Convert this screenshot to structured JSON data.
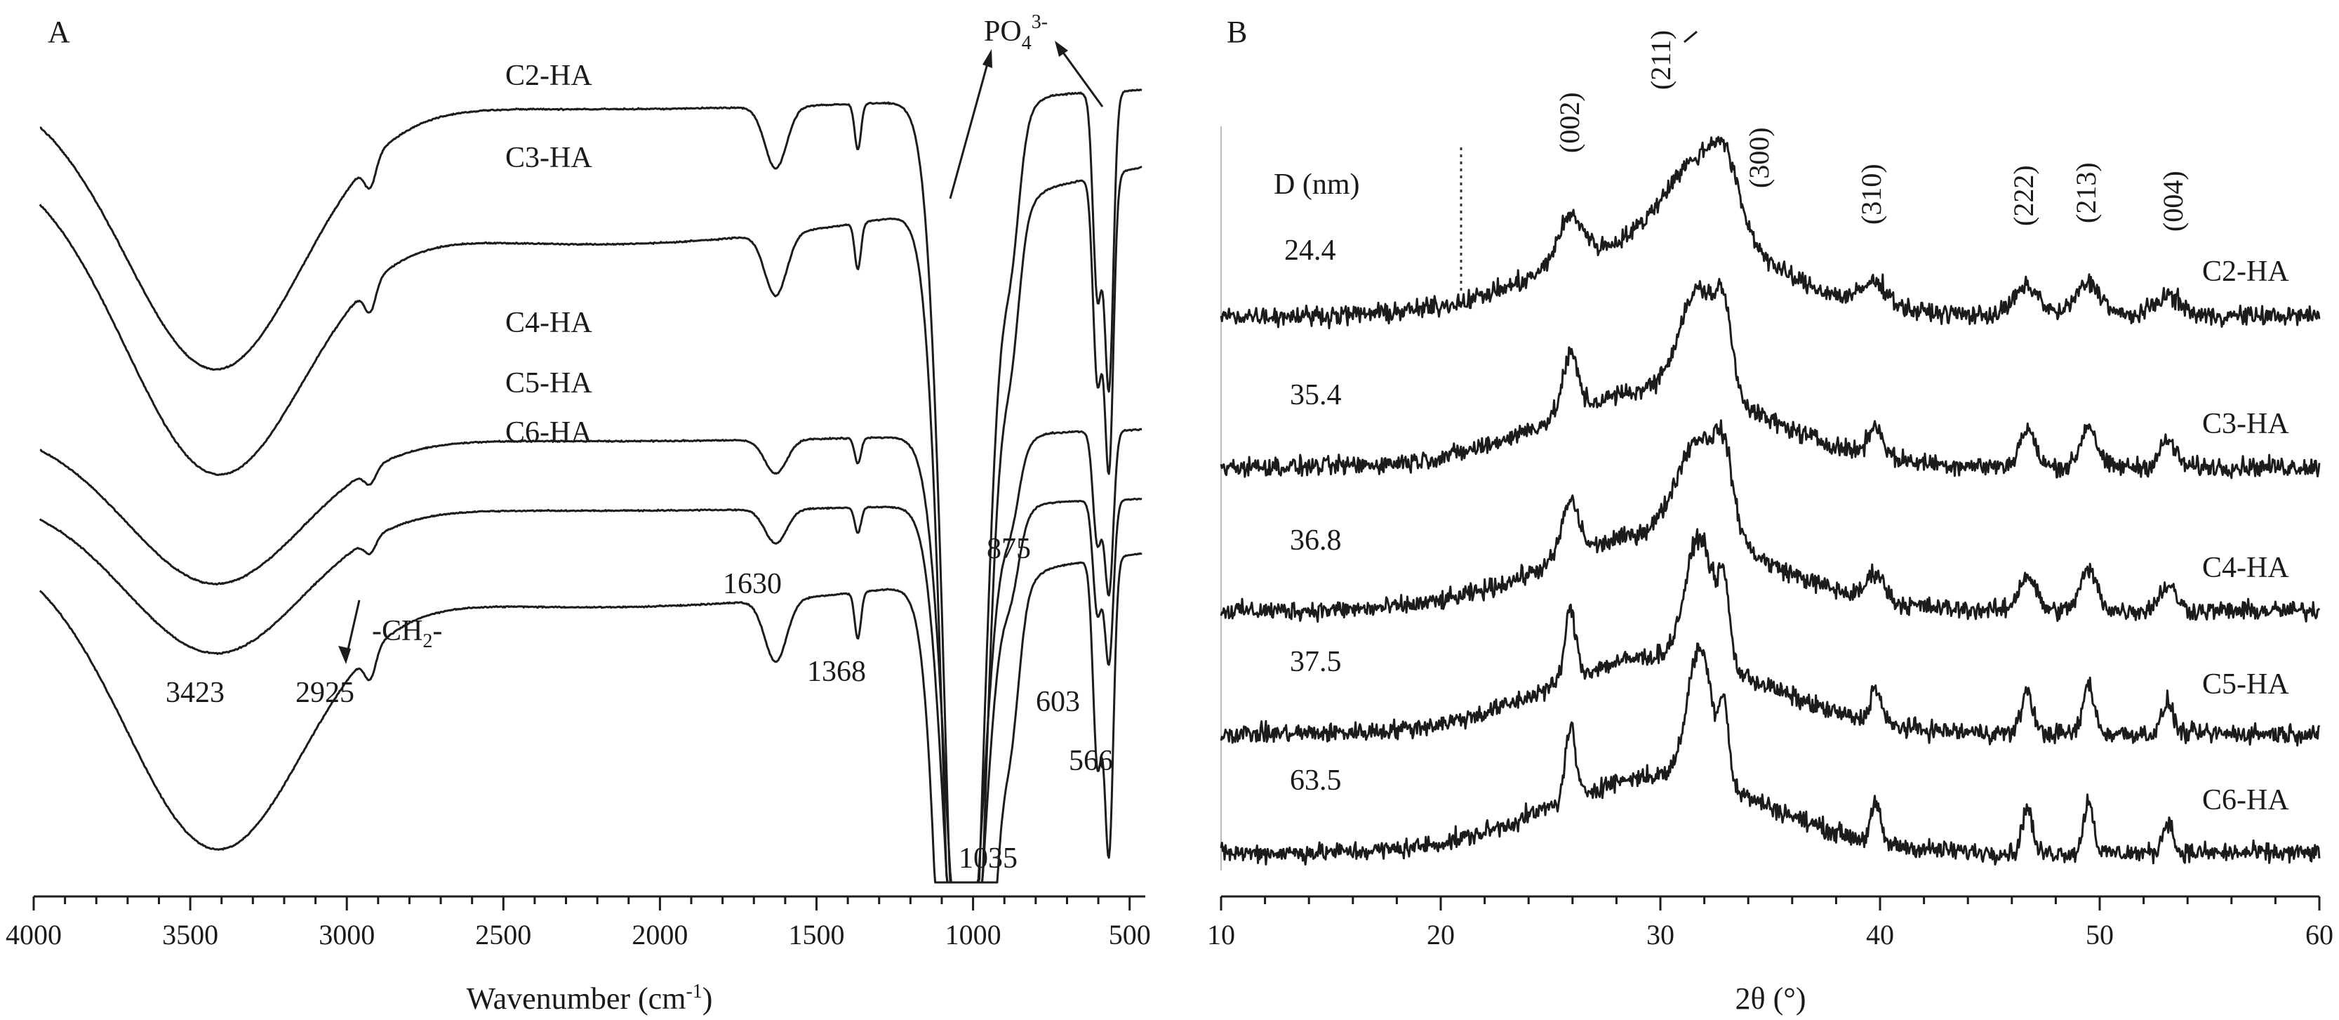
{
  "chart_data": [
    {
      "panel": "A",
      "type": "line",
      "xlabel": "Wavenumber (cm",
      "xlabel_sup": "-1",
      "xlabel_tail": ")",
      "xlim": [
        4000,
        450
      ],
      "xticks": [
        4000,
        3500,
        3000,
        2500,
        2000,
        1500,
        1000,
        500
      ],
      "series": [
        {
          "name": "C2-HA",
          "baseline": 0.0,
          "depth": 1.0,
          "curvature": 0.25
        },
        {
          "name": "C3-HA",
          "baseline": 0.1,
          "depth": 1.0,
          "curvature": 1.0
        },
        {
          "name": "C4-HA",
          "baseline": 0.44,
          "depth": 0.55,
          "curvature": 0.15
        },
        {
          "name": "C5-HA",
          "baseline": 0.53,
          "depth": 0.55,
          "curvature": 0.15
        },
        {
          "name": "C6-HA",
          "baseline": 0.6,
          "depth": 1.0,
          "curvature": 0.7
        }
      ],
      "peaks": [
        3423,
        2925,
        1630,
        1368,
        1035,
        875,
        603,
        566
      ],
      "annotations": {
        "ch2": "-CH",
        "ch2_sub": "2",
        "ch2_tail": "-",
        "po4": "PO",
        "po4_sub": "4",
        "po4_sup": "3-"
      }
    },
    {
      "panel": "B",
      "type": "line",
      "xlabel": "2θ (°)",
      "xlim": [
        10,
        60
      ],
      "xticks": [
        10,
        20,
        30,
        40,
        50,
        60
      ],
      "size_header": "D (nm)",
      "series": [
        {
          "name": "C2-HA",
          "crystallite_size_nm": "24.4"
        },
        {
          "name": "C3-HA",
          "crystallite_size_nm": "35.4"
        },
        {
          "name": "C4-HA",
          "crystallite_size_nm": "36.8"
        },
        {
          "name": "C5-HA",
          "crystallite_size_nm": "37.5"
        },
        {
          "name": "C6-HA",
          "crystallite_size_nm": "63.5"
        }
      ],
      "reflections": [
        {
          "hkl": "(002)",
          "two_theta": 25.9
        },
        {
          "hkl": "(211)",
          "two_theta": 31.8
        },
        {
          "hkl": "(300)",
          "two_theta": 32.9
        },
        {
          "hkl": "(310)",
          "two_theta": 39.8
        },
        {
          "hkl": "(222)",
          "two_theta": 46.7
        },
        {
          "hkl": "(213)",
          "two_theta": 49.5
        },
        {
          "hkl": "(004)",
          "two_theta": 53.1
        }
      ]
    }
  ]
}
